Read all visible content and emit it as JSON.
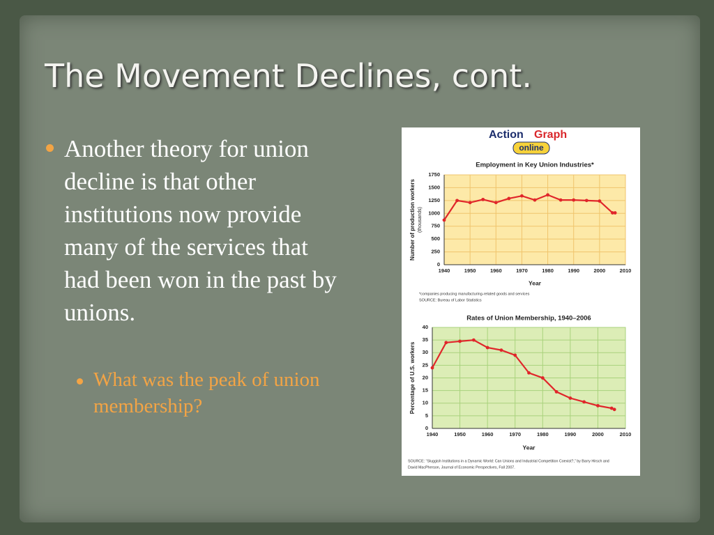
{
  "slide": {
    "title": "The Movement Declines, cont.",
    "bullet": "Another theory for union decline is that other institutions now provide many of the services that had been won in the past by unions.",
    "sub_bullet": "What was the peak of union membership?"
  },
  "graphic": {
    "logo": {
      "word1": "Action",
      "word2": "Graph",
      "word3": "online"
    },
    "notes_top": [
      "*companies producing manufacturing-related goods and services",
      "SOURCE: Bureau of Labor Statistics"
    ],
    "notes_bottom": [
      "SOURCE: “Sluggish Institutions in a Dynamic World: Can Unions and Industrial Competition Coexist?,” by Barry Hirsch and",
      "David MacPherson, Journal of Economic Perspectives, Fall 2007."
    ]
  },
  "chart_data": [
    {
      "type": "line",
      "title": "Employment in Key Union Industries*",
      "x_label": "Year",
      "y_label": [
        "Number of production workers",
        "(thousands)"
      ],
      "x": [
        1940,
        1945,
        1950,
        1955,
        1960,
        1965,
        1970,
        1975,
        1980,
        1985,
        1990,
        1995,
        2000,
        2005,
        2006
      ],
      "values": [
        870,
        1250,
        1210,
        1270,
        1210,
        1290,
        1340,
        1260,
        1360,
        1260,
        1260,
        1250,
        1240,
        1010,
        1010
      ],
      "color": "#e0262a",
      "background": "#fde9a8",
      "grid_color": "#f0c46c",
      "grid": true,
      "xlim": [
        1940,
        2010
      ],
      "xticks": [
        1940,
        1950,
        1960,
        1970,
        1980,
        1990,
        2000,
        2010
      ],
      "ylim": [
        0,
        1750
      ],
      "yticks": [
        0,
        250,
        500,
        750,
        1000,
        1250,
        1500,
        1750
      ]
    },
    {
      "type": "line",
      "title": "Rates of Union Membership, 1940–2006",
      "x_label": "Year",
      "y_label": [
        "Percentage of U.S. workers"
      ],
      "x": [
        1940,
        1945,
        1950,
        1955,
        1960,
        1965,
        1970,
        1975,
        1980,
        1985,
        1990,
        1995,
        2000,
        2005,
        2006
      ],
      "values": [
        24,
        34,
        34.5,
        35,
        32,
        31,
        29,
        22,
        20,
        14.5,
        12,
        10.5,
        9,
        8,
        7.5
      ],
      "color": "#e0262a",
      "background": "#dcedb6",
      "grid_color": "#a9d27c",
      "grid": true,
      "xlim": [
        1940,
        2010
      ],
      "xticks": [
        1940,
        1950,
        1960,
        1970,
        1980,
        1990,
        2000,
        2010
      ],
      "ylim": [
        0,
        40
      ],
      "yticks": [
        0,
        5,
        10,
        15,
        20,
        25,
        30,
        35,
        40
      ]
    }
  ]
}
